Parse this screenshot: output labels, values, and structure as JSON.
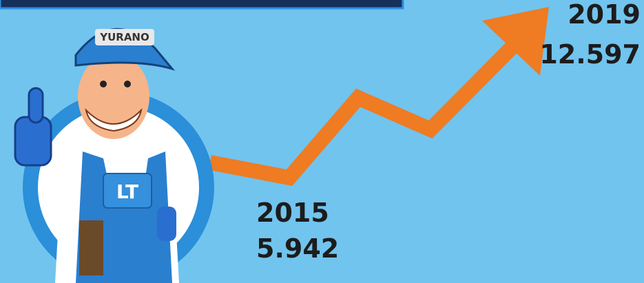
{
  "labels": [
    {
      "year": "2015",
      "value": "5.942"
    },
    {
      "year": "2019",
      "value": "12.597"
    }
  ],
  "mascot": {
    "cap_text": "YURANO",
    "bib_text": "LT"
  }
}
